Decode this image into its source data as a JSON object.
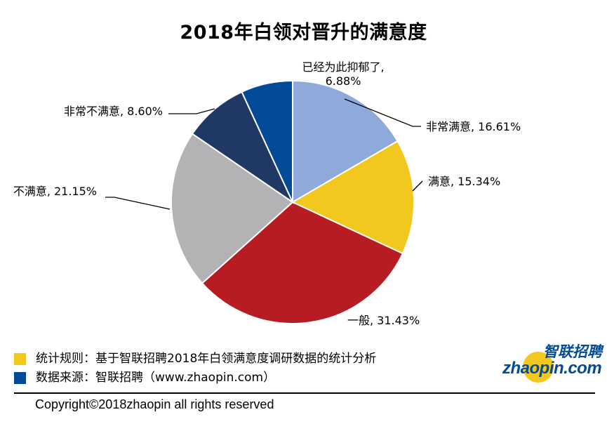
{
  "chart_data": {
    "type": "pie",
    "title": "2018年白领对晋升的满意度",
    "start_angle_deg": 0,
    "direction": "clockwise",
    "slices": [
      {
        "label": "非常满意",
        "value": 16.61,
        "display": "16.61%",
        "color": "#8eaadb"
      },
      {
        "label": "满意",
        "value": 15.34,
        "display": "15.34%",
        "color": "#f2c81e"
      },
      {
        "label": "一般",
        "value": 31.43,
        "display": "31.43%",
        "color": "#b81c23"
      },
      {
        "label": "不满意",
        "value": 21.15,
        "display": "21.15%",
        "color": "#b3b3b5"
      },
      {
        "label": "非常不满意",
        "value": 8.6,
        "display": "8.60%",
        "color": "#1f3864"
      },
      {
        "label": "已经为此抑郁了",
        "value": 6.88,
        "display": "6.88%",
        "color": "#034a98"
      }
    ]
  },
  "legend": [
    {
      "text": "统计规则：基于智联招聘2018年白领满意度调研数据的统计分析",
      "color": "#f2c81e"
    },
    {
      "text": "数据来源：智联招聘（www.zhaopin.com）",
      "color": "#034a98"
    }
  ],
  "logo": {
    "cn": "智联招聘",
    "en": "zhaopin.com",
    "color": "#034a98",
    "accent": "#f2c81e"
  },
  "footer": {
    "copyright": "Copyright©2018zhaopin all rights reserved"
  }
}
